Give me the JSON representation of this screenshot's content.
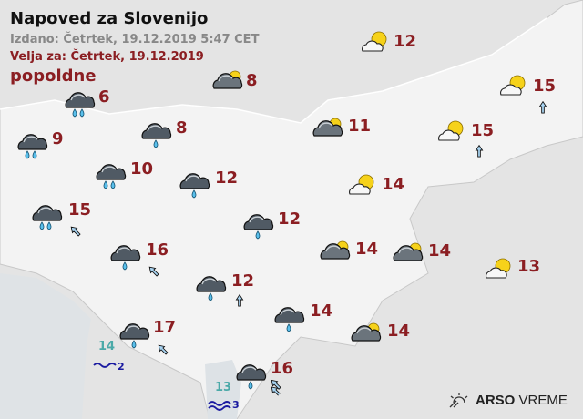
{
  "header": {
    "title": "Napoved za Slovenijo",
    "issued": "Izdano: Četrtek, 19.12.2019 5:47 CET",
    "valid_for": "Velja za: Četrtek, 19.12.2019",
    "period": "popoldne"
  },
  "colors": {
    "temperature": "#8b1e22",
    "sea_temperature": "#4aa9a8",
    "waves": "#1a1aa0",
    "land": "#f3f3f3",
    "outside": "#e4e4e4"
  },
  "stations": [
    {
      "icon": "cloud-heavy-rain-icon",
      "temp": "6"
    },
    {
      "icon": "cloud-heavy-rain-icon",
      "temp": "9"
    },
    {
      "icon": "partly-cloudy-icon",
      "temp": "8"
    },
    {
      "icon": "cloud-rain-icon",
      "temp": "8"
    },
    {
      "icon": "cloud-heavy-rain-icon",
      "temp": "10"
    },
    {
      "icon": "cloud-rain-icon",
      "temp": "12"
    },
    {
      "icon": "cloud-heavy-rain-icon",
      "temp": "15",
      "wind": "NW"
    },
    {
      "icon": "cloud-rain-icon",
      "temp": "12"
    },
    {
      "icon": "cloud-rain-icon",
      "temp": "16",
      "wind": "NW"
    },
    {
      "icon": "cloud-rain-icon",
      "temp": "12",
      "wind": "N"
    },
    {
      "icon": "cloud-rain-icon",
      "temp": "17",
      "wind": "NW"
    },
    {
      "icon": "cloud-rain-icon",
      "temp": "14"
    },
    {
      "icon": "cloud-rain-icon",
      "temp": "16",
      "wind": "NW-strong"
    },
    {
      "icon": "partly-cloudy-icon",
      "temp": "11"
    },
    {
      "icon": "mostly-sunny-icon",
      "temp": "12"
    },
    {
      "icon": "mostly-sunny-icon",
      "temp": "14"
    },
    {
      "icon": "partly-cloudy-icon",
      "temp": "14"
    },
    {
      "icon": "partly-cloudy-icon",
      "temp": "14"
    },
    {
      "icon": "partly-cloudy-icon",
      "temp": "14"
    },
    {
      "icon": "mostly-sunny-icon",
      "temp": "15",
      "wind": "N"
    },
    {
      "icon": "mostly-sunny-icon",
      "temp": "15",
      "wind": "N"
    },
    {
      "icon": "mostly-sunny-icon",
      "temp": "13"
    }
  ],
  "sea": [
    {
      "temp": "14",
      "waves": "2"
    },
    {
      "temp": "13",
      "waves": "3"
    }
  ],
  "logo": {
    "bold": "ARSO",
    "light": "VREME"
  }
}
